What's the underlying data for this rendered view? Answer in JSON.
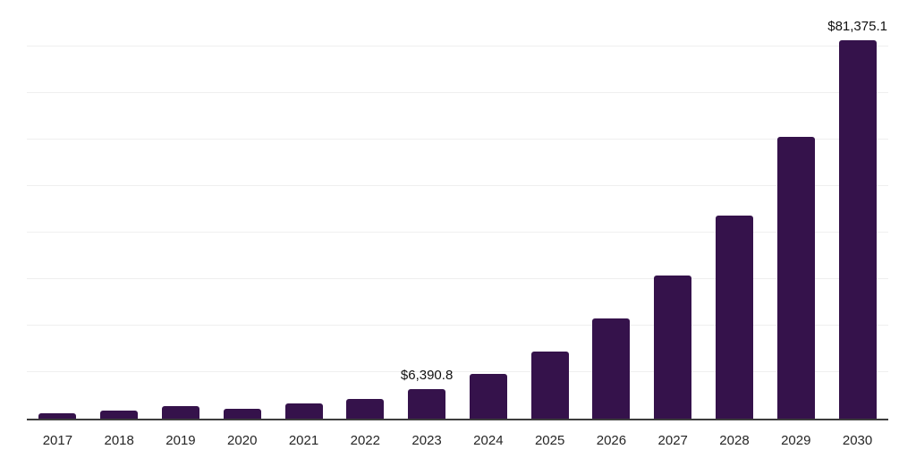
{
  "chart_data": {
    "type": "bar",
    "title": "",
    "xlabel": "",
    "ylabel": "",
    "categories": [
      "2017",
      "2018",
      "2019",
      "2020",
      "2021",
      "2022",
      "2023",
      "2024",
      "2025",
      "2026",
      "2027",
      "2028",
      "2029",
      "2030"
    ],
    "values": [
      1150,
      1790,
      2620,
      2170,
      3260,
      4210,
      6390.8,
      9580,
      14500,
      21500,
      30850,
      43600,
      60550,
      81375.1
    ],
    "value_labels": {
      "2023": "$6,390.8",
      "2030": "$81,375.1"
    },
    "ylim": [
      0,
      90000
    ],
    "gridline_interval": 10000,
    "grid": "horizontal-only",
    "legend": "none",
    "y_axis_ticks_visible": false
  },
  "colors": {
    "bar": "#35124b",
    "axis_line": "#3d3d3d",
    "gridline": "#efefef",
    "tick_label": "#262626",
    "value_label": "#111111",
    "background": "#ffffff"
  }
}
